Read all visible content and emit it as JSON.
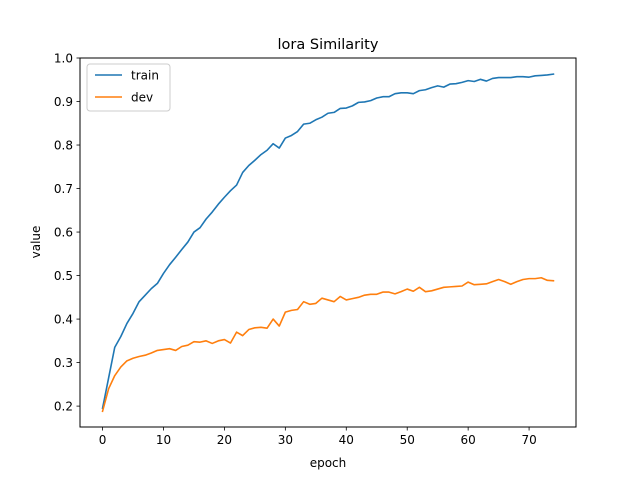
{
  "chart_data": {
    "type": "line",
    "title": "lora Similarity",
    "xlabel": "epoch",
    "ylabel": "value",
    "xlim": [
      -3.7,
      77.7
    ],
    "ylim": [
      0.152,
      1.0
    ],
    "xticks": [
      0,
      10,
      20,
      30,
      40,
      50,
      60,
      70
    ],
    "yticks": [
      0.2,
      0.3,
      0.4,
      0.5,
      0.6,
      0.7,
      0.8,
      0.9,
      1.0
    ],
    "grid": false,
    "legend_position": "top-left",
    "x": [
      0,
      1,
      2,
      3,
      4,
      5,
      6,
      7,
      8,
      9,
      10,
      11,
      12,
      13,
      14,
      15,
      16,
      17,
      18,
      19,
      20,
      21,
      22,
      23,
      24,
      25,
      26,
      27,
      28,
      29,
      30,
      31,
      32,
      33,
      34,
      35,
      36,
      37,
      38,
      39,
      40,
      41,
      42,
      43,
      44,
      45,
      46,
      47,
      48,
      49,
      50,
      51,
      52,
      53,
      54,
      55,
      56,
      57,
      58,
      59,
      60,
      61,
      62,
      63,
      64,
      65,
      66,
      67,
      68,
      69,
      70,
      71,
      72,
      73,
      74
    ],
    "series": [
      {
        "name": "train",
        "color": "#1f77b4",
        "values": [
          0.195,
          0.265,
          0.335,
          0.36,
          0.39,
          0.413,
          0.44,
          0.455,
          0.47,
          0.482,
          0.505,
          0.525,
          0.542,
          0.56,
          0.577,
          0.6,
          0.61,
          0.63,
          0.646,
          0.664,
          0.68,
          0.695,
          0.708,
          0.737,
          0.753,
          0.765,
          0.778,
          0.788,
          0.803,
          0.793,
          0.816,
          0.822,
          0.831,
          0.848,
          0.85,
          0.858,
          0.864,
          0.873,
          0.875,
          0.884,
          0.885,
          0.89,
          0.898,
          0.899,
          0.902,
          0.908,
          0.911,
          0.911,
          0.918,
          0.92,
          0.92,
          0.918,
          0.925,
          0.927,
          0.932,
          0.936,
          0.933,
          0.94,
          0.941,
          0.944,
          0.948,
          0.946,
          0.951,
          0.947,
          0.953,
          0.955,
          0.955,
          0.955,
          0.957,
          0.957,
          0.956,
          0.959,
          0.96,
          0.961,
          0.963
        ]
      },
      {
        "name": "dev",
        "color": "#ff7f0e",
        "values": [
          0.188,
          0.24,
          0.27,
          0.29,
          0.304,
          0.31,
          0.314,
          0.317,
          0.322,
          0.328,
          0.33,
          0.332,
          0.328,
          0.337,
          0.34,
          0.348,
          0.347,
          0.35,
          0.344,
          0.35,
          0.353,
          0.345,
          0.37,
          0.362,
          0.376,
          0.38,
          0.381,
          0.379,
          0.4,
          0.384,
          0.416,
          0.42,
          0.422,
          0.44,
          0.434,
          0.436,
          0.448,
          0.444,
          0.44,
          0.452,
          0.444,
          0.447,
          0.45,
          0.455,
          0.457,
          0.457,
          0.462,
          0.462,
          0.458,
          0.463,
          0.469,
          0.464,
          0.473,
          0.463,
          0.465,
          0.469,
          0.473,
          0.474,
          0.475,
          0.476,
          0.485,
          0.479,
          0.48,
          0.481,
          0.486,
          0.491,
          0.486,
          0.48,
          0.486,
          0.491,
          0.493,
          0.493,
          0.495,
          0.489,
          0.488
        ]
      }
    ]
  }
}
